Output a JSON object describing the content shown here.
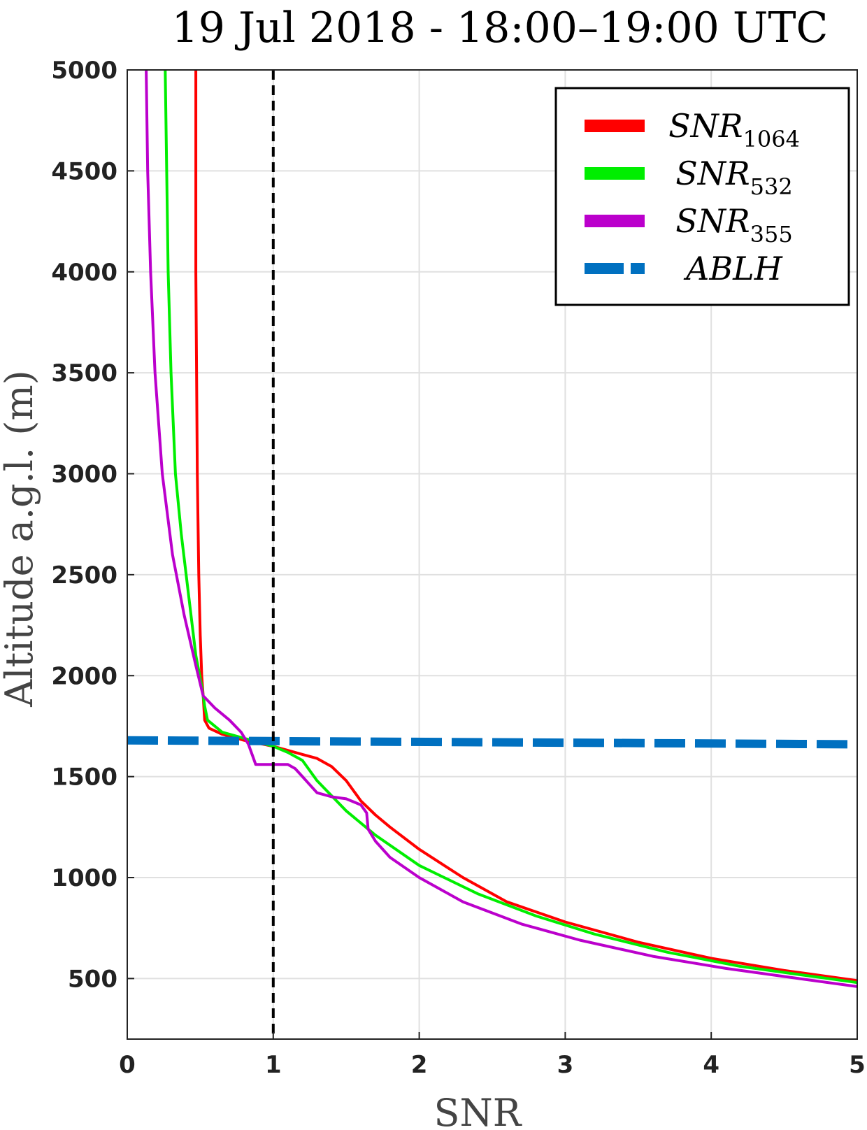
{
  "chart_data": {
    "type": "line",
    "title": "19 Jul 2018 - 18:00–19:00 UTC",
    "xlabel": "SNR",
    "ylabel": "Altitude a.g.l. (m)",
    "xlim": [
      0,
      5
    ],
    "ylim": [
      200,
      5000
    ],
    "xticks": [
      0,
      1,
      2,
      3,
      4,
      5
    ],
    "yticks": [
      500,
      1000,
      1500,
      2000,
      2500,
      3000,
      3500,
      4000,
      4500,
      5000
    ],
    "grid": true,
    "legend": {
      "position": "top-right"
    },
    "series": [
      {
        "name": "SNR",
        "sub": "1064",
        "color": "#ff0000",
        "points": [
          [
            0.47,
            5000
          ],
          [
            0.47,
            4500
          ],
          [
            0.47,
            4000
          ],
          [
            0.48,
            3000
          ],
          [
            0.49,
            2500
          ],
          [
            0.5,
            2200
          ],
          [
            0.51,
            2000
          ],
          [
            0.52,
            1900
          ],
          [
            0.53,
            1780
          ],
          [
            0.56,
            1740
          ],
          [
            0.65,
            1710
          ],
          [
            0.8,
            1680
          ],
          [
            1.0,
            1650
          ],
          [
            1.2,
            1610
          ],
          [
            1.3,
            1590
          ],
          [
            1.4,
            1550
          ],
          [
            1.5,
            1480
          ],
          [
            1.6,
            1380
          ],
          [
            1.7,
            1310
          ],
          [
            1.8,
            1250
          ],
          [
            2.0,
            1140
          ],
          [
            2.3,
            1000
          ],
          [
            2.6,
            880
          ],
          [
            3.0,
            780
          ],
          [
            3.5,
            680
          ],
          [
            4.0,
            600
          ],
          [
            4.5,
            540
          ],
          [
            5.0,
            490
          ]
        ]
      },
      {
        "name": "SNR",
        "sub": "532",
        "color": "#00ee00",
        "points": [
          [
            0.26,
            5000
          ],
          [
            0.27,
            4500
          ],
          [
            0.28,
            4000
          ],
          [
            0.3,
            3500
          ],
          [
            0.33,
            3000
          ],
          [
            0.37,
            2700
          ],
          [
            0.42,
            2400
          ],
          [
            0.47,
            2100
          ],
          [
            0.51,
            1950
          ],
          [
            0.53,
            1850
          ],
          [
            0.55,
            1780
          ],
          [
            0.65,
            1720
          ],
          [
            0.8,
            1690
          ],
          [
            1.0,
            1650
          ],
          [
            1.1,
            1620
          ],
          [
            1.2,
            1580
          ],
          [
            1.3,
            1480
          ],
          [
            1.5,
            1330
          ],
          [
            1.7,
            1210
          ],
          [
            2.0,
            1060
          ],
          [
            2.4,
            920
          ],
          [
            2.8,
            810
          ],
          [
            3.2,
            720
          ],
          [
            3.7,
            630
          ],
          [
            4.2,
            560
          ],
          [
            4.6,
            520
          ],
          [
            5.0,
            480
          ]
        ]
      },
      {
        "name": "SNR",
        "sub": "355",
        "color": "#bb00cc",
        "points": [
          [
            0.13,
            5000
          ],
          [
            0.14,
            4500
          ],
          [
            0.16,
            4000
          ],
          [
            0.19,
            3500
          ],
          [
            0.24,
            3000
          ],
          [
            0.31,
            2600
          ],
          [
            0.39,
            2300
          ],
          [
            0.47,
            2050
          ],
          [
            0.52,
            1900
          ],
          [
            0.6,
            1840
          ],
          [
            0.7,
            1780
          ],
          [
            0.78,
            1720
          ],
          [
            0.83,
            1660
          ],
          [
            0.86,
            1600
          ],
          [
            0.88,
            1560
          ],
          [
            1.1,
            1560
          ],
          [
            1.15,
            1540
          ],
          [
            1.2,
            1500
          ],
          [
            1.25,
            1460
          ],
          [
            1.3,
            1420
          ],
          [
            1.4,
            1400
          ],
          [
            1.5,
            1390
          ],
          [
            1.6,
            1360
          ],
          [
            1.64,
            1320
          ],
          [
            1.65,
            1240
          ],
          [
            1.7,
            1180
          ],
          [
            1.8,
            1100
          ],
          [
            2.0,
            1000
          ],
          [
            2.3,
            880
          ],
          [
            2.7,
            770
          ],
          [
            3.1,
            690
          ],
          [
            3.6,
            610
          ],
          [
            4.1,
            550
          ],
          [
            4.6,
            500
          ],
          [
            5.0,
            460
          ]
        ]
      },
      {
        "name": "ABLH",
        "color": "#0070c0",
        "dashed": true,
        "points": [
          [
            0,
            1680
          ],
          [
            5,
            1660
          ]
        ]
      }
    ],
    "threshold_line": {
      "x": 1,
      "color": "#000000",
      "dashed": true
    }
  }
}
